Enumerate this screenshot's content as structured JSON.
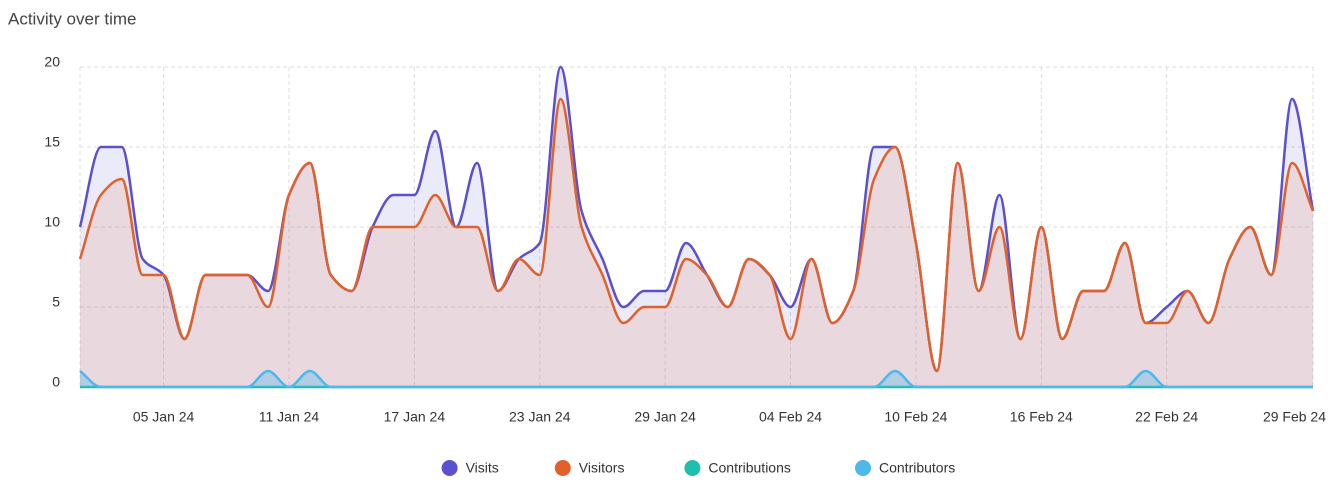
{
  "chart_data": {
    "type": "area",
    "title": "Activity over time",
    "categories": [
      null,
      null,
      null,
      null,
      "05 Jan 24",
      null,
      null,
      null,
      null,
      null,
      "11 Jan 24",
      null,
      null,
      null,
      null,
      null,
      "17 Jan 24",
      null,
      null,
      null,
      null,
      null,
      "23 Jan 24",
      null,
      null,
      null,
      null,
      null,
      "29 Jan 24",
      null,
      null,
      null,
      null,
      null,
      "04 Feb 24",
      null,
      null,
      null,
      null,
      null,
      "10 Feb 24",
      null,
      null,
      null,
      null,
      null,
      "16 Feb 24",
      null,
      null,
      null,
      null,
      null,
      "22 Feb 24",
      null,
      null,
      null,
      null,
      null,
      null,
      "29 Feb 24"
    ],
    "series": [
      {
        "name": "Visits",
        "color": "#5b50d0",
        "values": [
          10,
          15,
          15,
          8,
          7,
          3,
          7,
          7,
          7,
          6,
          12,
          14,
          7,
          6,
          10,
          12,
          12,
          16,
          10,
          14,
          6,
          8,
          9,
          20,
          11,
          8,
          5,
          6,
          6,
          9,
          7,
          5,
          8,
          7,
          5,
          8,
          4,
          6,
          15,
          15,
          9,
          1,
          14,
          6,
          12,
          3,
          10,
          3,
          6,
          6,
          9,
          4,
          5,
          6,
          4,
          8,
          10,
          7,
          18,
          11
        ]
      },
      {
        "name": "Visitors",
        "color": "#e0622a",
        "values": [
          8,
          12,
          13,
          7,
          7,
          3,
          7,
          7,
          7,
          5,
          12,
          14,
          7,
          6,
          10,
          10,
          10,
          12,
          10,
          10,
          6,
          8,
          7,
          18,
          10,
          7,
          4,
          5,
          5,
          8,
          7,
          5,
          8,
          7,
          3,
          8,
          4,
          6,
          13,
          15,
          9,
          1,
          14,
          6,
          10,
          3,
          10,
          3,
          6,
          6,
          9,
          4,
          4,
          6,
          4,
          8,
          10,
          7,
          14,
          11
        ]
      },
      {
        "name": "Contributions",
        "color": "#1fbfae",
        "values": [
          0,
          0,
          0,
          0,
          0,
          0,
          0,
          0,
          0,
          0,
          0,
          0,
          0,
          0,
          0,
          0,
          0,
          0,
          0,
          0,
          0,
          0,
          0,
          0,
          0,
          0,
          0,
          0,
          0,
          0,
          0,
          0,
          0,
          0,
          0,
          0,
          0,
          0,
          0,
          0,
          0,
          0,
          0,
          0,
          0,
          0,
          0,
          0,
          0,
          0,
          0,
          0,
          0,
          0,
          0,
          0,
          0,
          0,
          0,
          0
        ]
      },
      {
        "name": "Contributors",
        "color": "#4db8ea",
        "values": [
          1,
          0,
          0,
          0,
          0,
          0,
          0,
          0,
          0,
          1,
          0,
          1,
          0,
          0,
          0,
          0,
          0,
          0,
          0,
          0,
          0,
          0,
          0,
          0,
          0,
          0,
          0,
          0,
          0,
          0,
          0,
          0,
          0,
          0,
          0,
          0,
          0,
          0,
          0,
          1,
          0,
          0,
          0,
          0,
          0,
          0,
          0,
          0,
          0,
          0,
          0,
          1,
          0,
          0,
          0,
          0,
          0,
          0,
          0,
          0
        ]
      }
    ],
    "ylim": [
      0,
      20
    ],
    "yticks": [
      0,
      5,
      10,
      15,
      20
    ],
    "grid": true
  }
}
